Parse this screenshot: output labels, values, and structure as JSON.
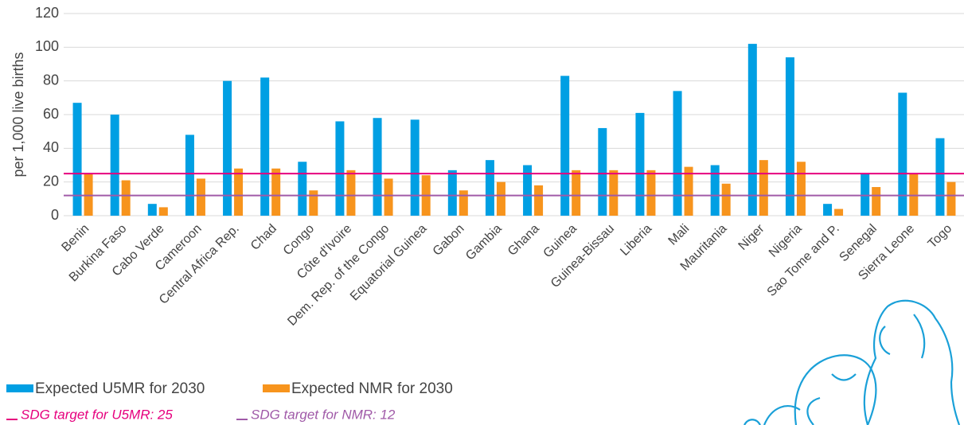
{
  "chart_data": {
    "type": "bar",
    "y_label": "per 1,000 live births",
    "categories": [
      "Benin",
      "Burkina Faso",
      "Cabo Verde",
      "Cameroon",
      "Central Africa Rep.",
      "Chad",
      "Congo",
      "Côte d'Ivoire",
      "Dem. Rep. of the Congo",
      "Equatorial Guinea",
      "Gabon",
      "Gambia",
      "Ghana",
      "Guinea",
      "Guinea-Bissau",
      "Liberia",
      "Mali",
      "Mauritania",
      "Niger",
      "Nigeria",
      "Sao Tome and P.",
      "Senegal",
      "Sierra Leone",
      "Togo"
    ],
    "series": [
      {
        "name": "Expected U5MR for 2030",
        "color": "#009fe3",
        "values": [
          67,
          60,
          7,
          48,
          80,
          82,
          32,
          56,
          58,
          57,
          27,
          33,
          30,
          83,
          52,
          61,
          74,
          30,
          102,
          94,
          7,
          25,
          73,
          46
        ]
      },
      {
        "name": "Expected NMR for 2030",
        "color": "#f7941d",
        "values": [
          25,
          21,
          5,
          22,
          28,
          28,
          15,
          27,
          22,
          24,
          15,
          20,
          18,
          27,
          27,
          27,
          29,
          19,
          33,
          32,
          4,
          17,
          25,
          20
        ]
      }
    ],
    "reference_lines": [
      {
        "label": "SDG target for U5MR: 25",
        "value": 25,
        "color": "#e6007e"
      },
      {
        "label": "SDG target for NMR: 12",
        "value": 12,
        "color": "#a05aa8"
      }
    ],
    "ylim": [
      0,
      120
    ],
    "yticks": [
      0,
      20,
      40,
      60,
      80,
      100,
      120
    ],
    "grid": true
  }
}
